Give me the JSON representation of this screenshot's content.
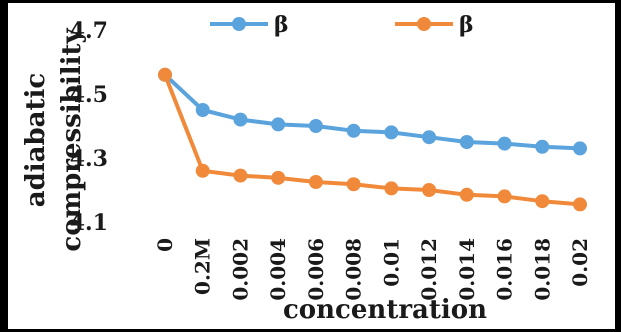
{
  "chart_data": {
    "type": "line",
    "xlabel": "concentration",
    "ylabel_lines": [
      "adiabatic",
      "compressibility"
    ],
    "categories": [
      "0",
      "0.2M",
      "0.002",
      "0.004",
      "0.006",
      "0.008",
      "0.01",
      "0.012",
      "0.014",
      "0.016",
      "0.018",
      "0.02"
    ],
    "ylim": [
      4.1,
      4.7
    ],
    "yticks": [
      "4.1",
      "4.3",
      "4.5",
      "4.7"
    ],
    "legend_position": "top",
    "series": [
      {
        "name": "β",
        "color": "#5ba3dd",
        "values": [
          4.56,
          4.45,
          4.42,
          4.405,
          4.4,
          4.385,
          4.38,
          4.365,
          4.35,
          4.345,
          4.335,
          4.33
        ]
      },
      {
        "name": "β",
        "color": "#f08a3a",
        "values": [
          4.56,
          4.26,
          4.245,
          4.238,
          4.225,
          4.218,
          4.205,
          4.2,
          4.185,
          4.18,
          4.165,
          4.155
        ]
      }
    ]
  }
}
